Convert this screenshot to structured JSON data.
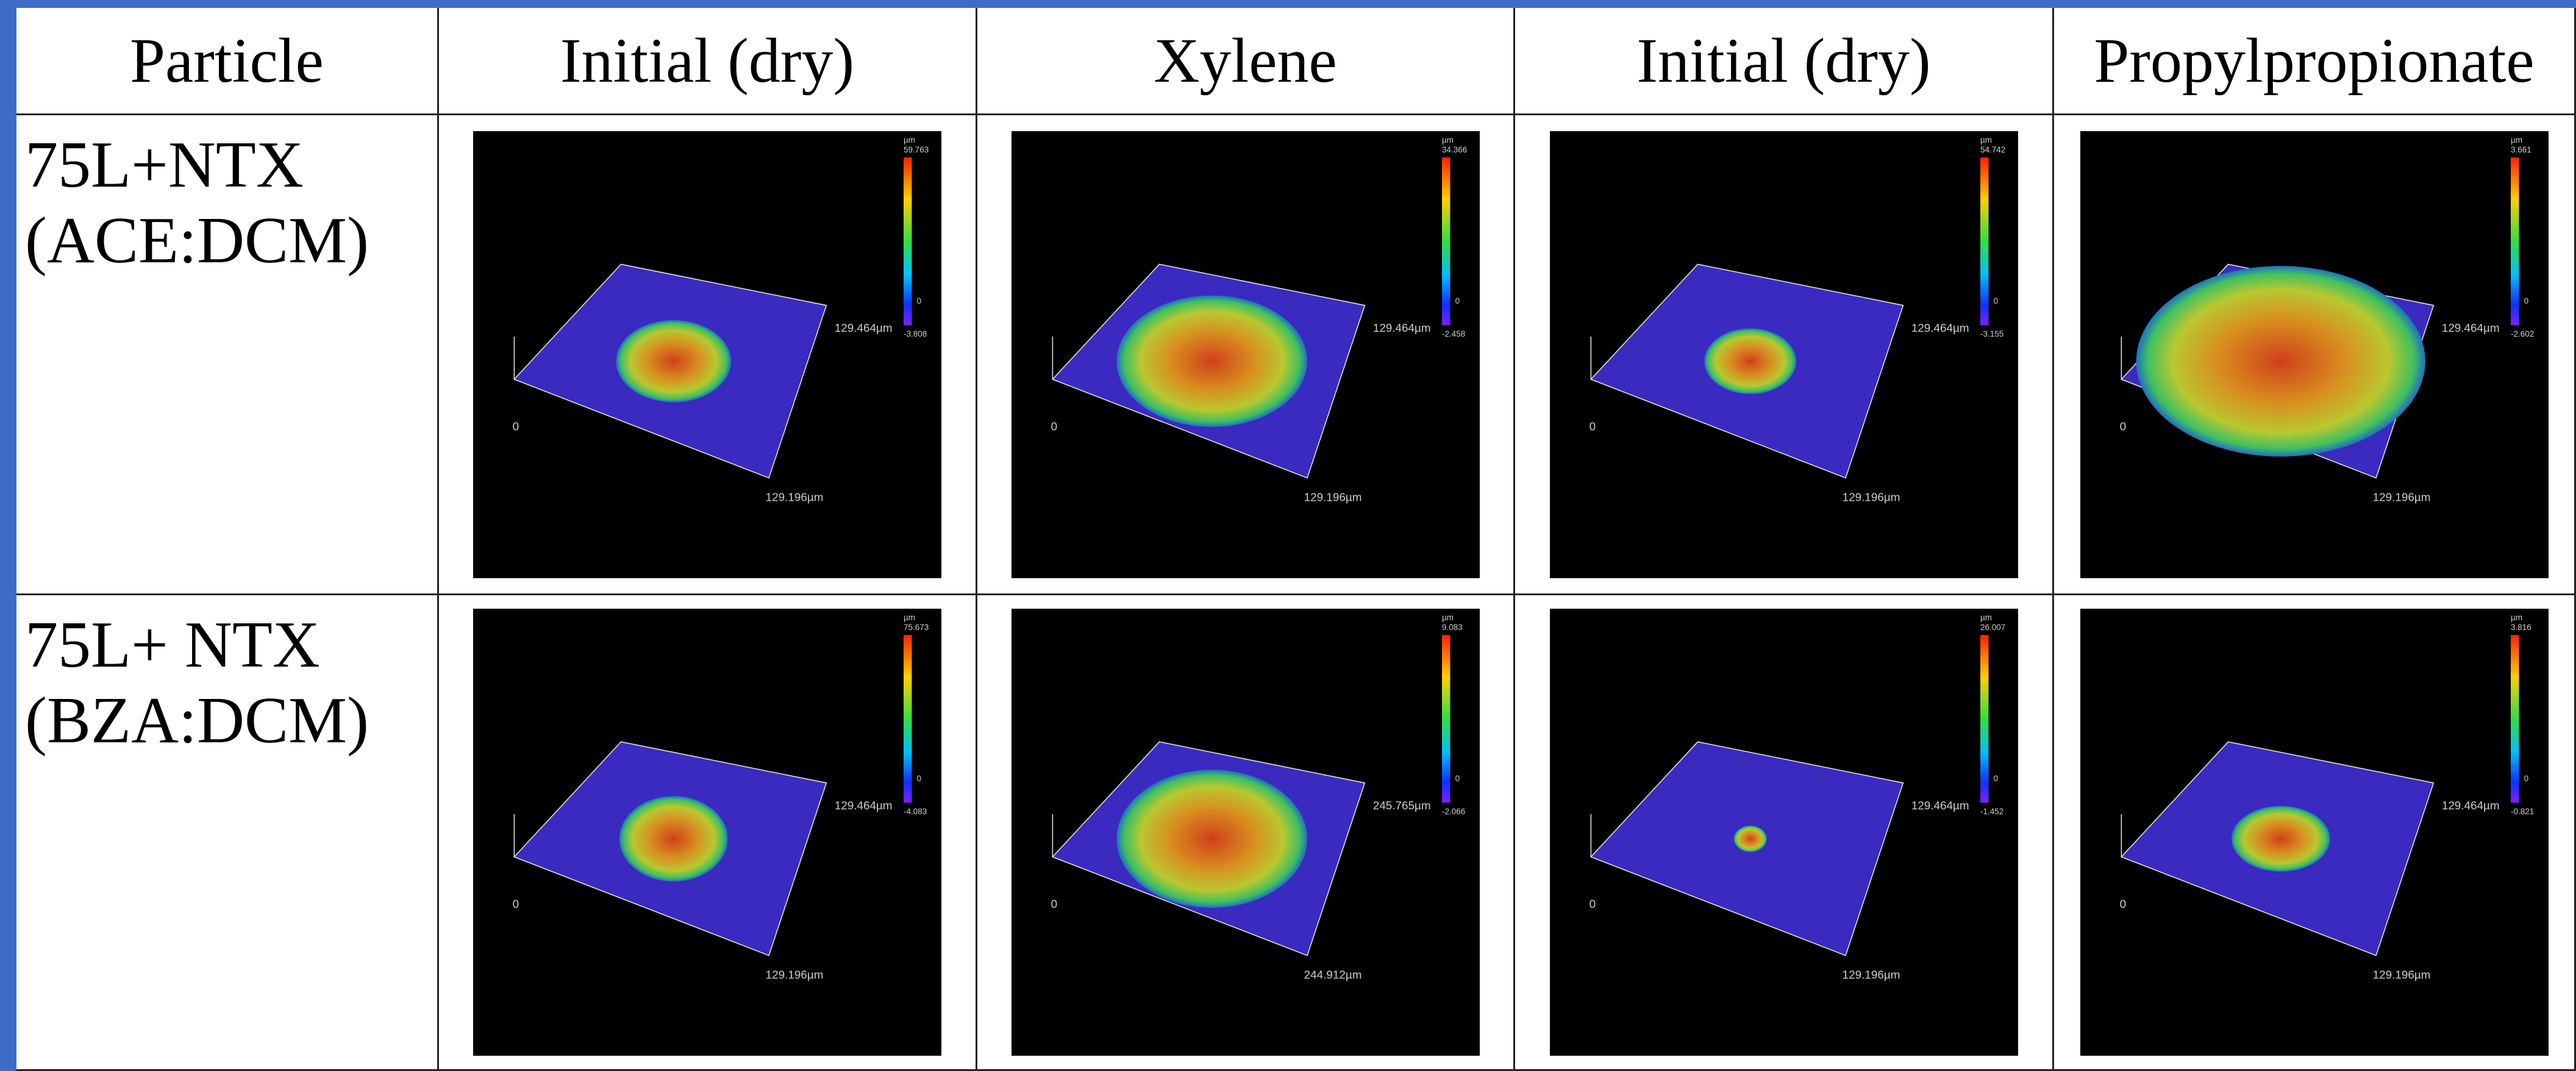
{
  "table": {
    "header": [
      "Particle",
      "Initial (dry)",
      "Xylene",
      "Initial (dry)",
      "Propylpropionate"
    ],
    "rows": [
      {
        "particle": [
          "75L+NTX",
          "(ACE:DCM)"
        ],
        "images": [
          {
            "unit": "µm",
            "max": "59.763",
            "zero": "0",
            "min": "-3.808",
            "y_extent": "129.464µm",
            "x_extent": "129.196µm",
            "origin": "0"
          },
          {
            "unit": "µm",
            "max": "34.366",
            "zero": "0",
            "min": "-2.458",
            "y_extent": "129.464µm",
            "x_extent": "129.196µm",
            "origin": "0"
          },
          {
            "unit": "µm",
            "max": "54.742",
            "zero": "0",
            "min": "-3.155",
            "y_extent": "129.464µm",
            "x_extent": "129.196µm",
            "origin": "0"
          },
          {
            "unit": "µm",
            "max": "3.661",
            "zero": "0",
            "min": "-2.602",
            "y_extent": "129.464µm",
            "x_extent": "129.196µm",
            "origin": "0"
          }
        ]
      },
      {
        "particle": [
          "75L+ NTX",
          "(BZA:DCM)"
        ],
        "images": [
          {
            "unit": "µm",
            "max": "75.673",
            "zero": "0",
            "min": "-4.083",
            "y_extent": "129.464µm",
            "x_extent": "129.196µm",
            "origin": "0"
          },
          {
            "unit": "µm",
            "max": "9.083",
            "zero": "0",
            "min": "-2.066",
            "y_extent": "245.765µm",
            "x_extent": "244.912µm",
            "origin": "0"
          },
          {
            "unit": "µm",
            "max": "26.007",
            "zero": "0",
            "min": "-1.452",
            "y_extent": "129.464µm",
            "x_extent": "129.196µm",
            "origin": "0"
          },
          {
            "unit": "µm",
            "max": "3.816",
            "zero": "0",
            "min": "-0.821",
            "y_extent": "129.464µm",
            "x_extent": "129.196µm",
            "origin": "0"
          }
        ]
      }
    ]
  }
}
